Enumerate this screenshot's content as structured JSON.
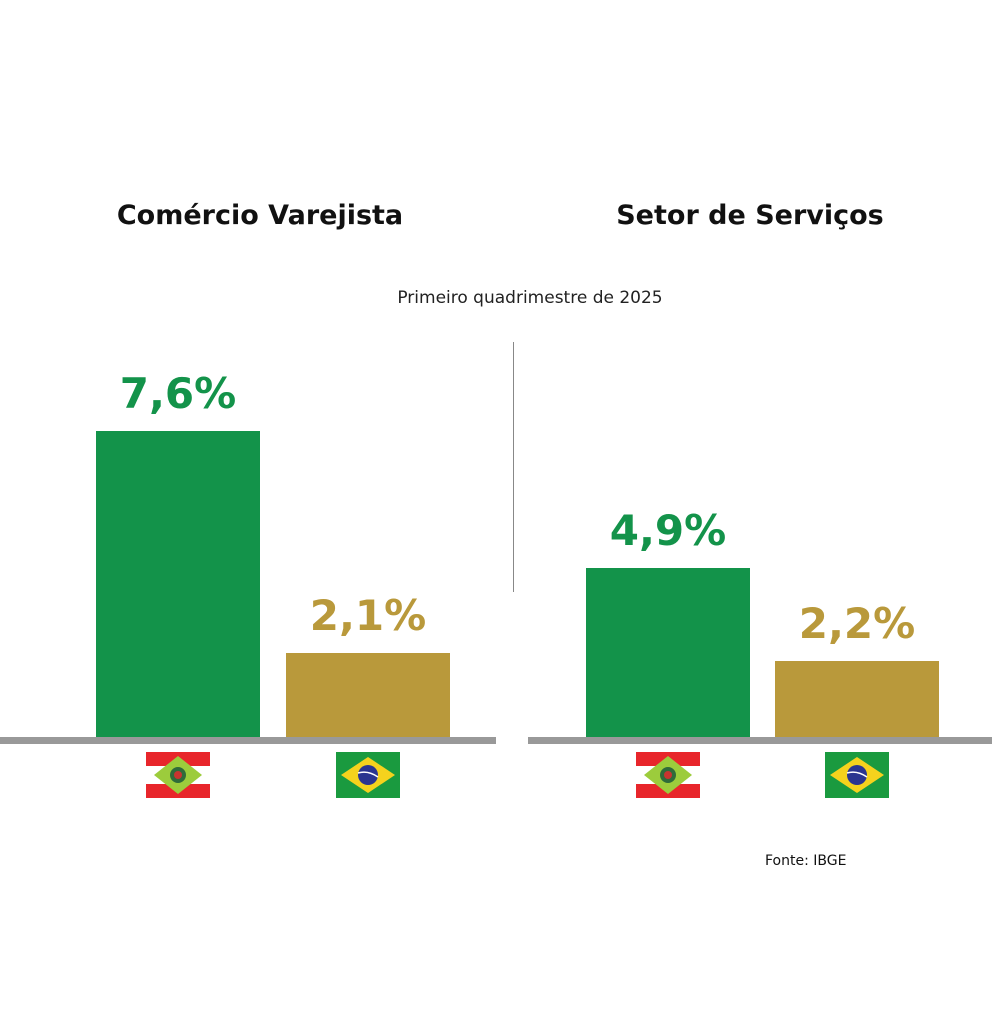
{
  "chart_data": [
    {
      "type": "bar",
      "title": "Comércio Varejista",
      "categories": [
        "Santa Catarina",
        "Brasil"
      ],
      "values": [
        7.6,
        2.1
      ],
      "labels": [
        "7,6%",
        "2,1%"
      ],
      "colors": [
        "#13934a",
        "#b9993b"
      ],
      "icons": [
        "santa-catarina-flag-icon",
        "brazil-flag-icon"
      ]
    },
    {
      "type": "bar",
      "title": "Setor de Serviços",
      "categories": [
        "Santa Catarina",
        "Brasil"
      ],
      "values": [
        4.9,
        2.2
      ],
      "labels": [
        "4,9%",
        "2,2%"
      ],
      "colors": [
        "#13934a",
        "#b9993b"
      ],
      "icons": [
        "santa-catarina-flag-icon",
        "brazil-flag-icon"
      ]
    }
  ],
  "subtitle": "Primeiro quadrimestre de 2025",
  "source": "Fonte: IBGE"
}
